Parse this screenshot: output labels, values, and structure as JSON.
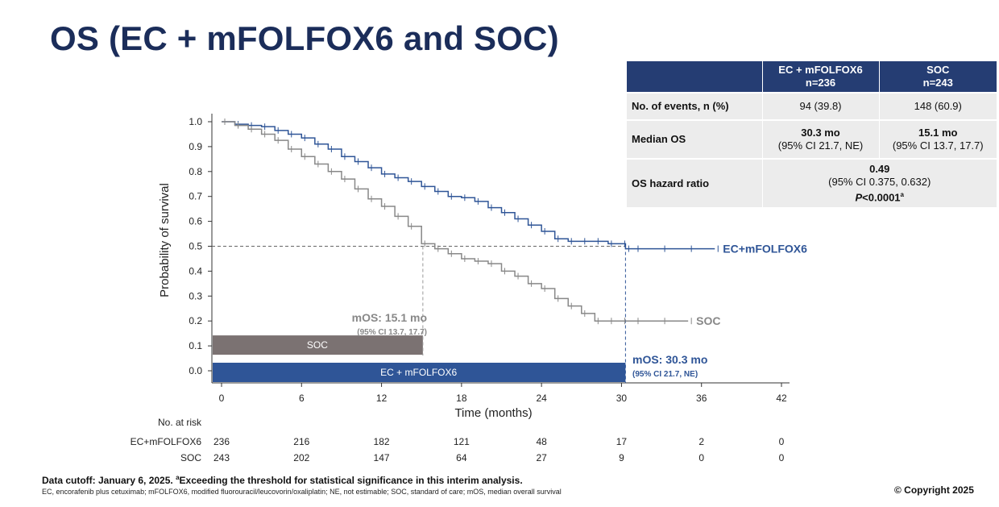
{
  "title": "OS (EC + mFOLFOX6 and SOC)",
  "table": {
    "headers": [
      {
        "line1": "",
        "line2": ""
      },
      {
        "line1": "EC + mFOLFOX6",
        "line2": "n=236"
      },
      {
        "line1": "SOC",
        "line2": "n=243"
      }
    ],
    "events": {
      "label": "No. of events, n (%)",
      "ec": "94 (39.8)",
      "soc": "148 (60.9)"
    },
    "median_os": {
      "label": "Median OS",
      "ec_main": "30.3 mo",
      "ec_ci": "(95% CI 21.7, NE)",
      "soc_main": "15.1 mo",
      "soc_ci": "(95% CI 13.7, 17.7)"
    },
    "hazard_ratio": {
      "label": "OS hazard ratio",
      "value": "0.49",
      "ci": "(95% CI 0.375, 0.632)",
      "p_italic": "P",
      "p_rest": "<0.0001",
      "p_sup": "a"
    }
  },
  "chart_data": {
    "type": "line",
    "xlabel": "Time (months)",
    "ylabel": "Probability of survival",
    "xlim": [
      0,
      42
    ],
    "ylim": [
      0,
      1
    ],
    "xticks": [
      0,
      6,
      12,
      18,
      24,
      30,
      36,
      42
    ],
    "yticks": [
      0.0,
      0.1,
      0.2,
      0.3,
      0.4,
      0.5,
      0.6,
      0.7,
      0.8,
      0.9,
      1.0
    ],
    "ytick_labels": [
      "0.0",
      "0.1",
      "0.2",
      "0.3",
      "0.4",
      "0.5",
      "0.6",
      "0.7",
      "0.8",
      "0.9",
      "1.0"
    ],
    "series": [
      {
        "name": "EC+mFOLFOX6",
        "color": "#2f5597",
        "x": [
          0,
          1,
          2,
          3,
          4,
          5,
          6,
          7,
          8,
          9,
          10,
          11,
          12,
          13,
          14,
          15,
          16,
          17,
          18,
          19,
          20,
          21,
          22,
          23,
          24,
          25,
          26,
          27,
          28,
          29,
          30,
          30.3,
          31,
          33,
          35,
          37
        ],
        "y": [
          1.0,
          0.99,
          0.985,
          0.98,
          0.965,
          0.95,
          0.935,
          0.91,
          0.89,
          0.86,
          0.84,
          0.815,
          0.79,
          0.775,
          0.76,
          0.74,
          0.72,
          0.7,
          0.695,
          0.68,
          0.655,
          0.635,
          0.61,
          0.585,
          0.56,
          0.53,
          0.52,
          0.52,
          0.52,
          0.51,
          0.51,
          0.49,
          0.49,
          0.49,
          0.49,
          0.49
        ]
      },
      {
        "name": "SOC",
        "color": "#888888",
        "x": [
          0,
          1,
          2,
          3,
          4,
          5,
          6,
          7,
          8,
          9,
          10,
          11,
          12,
          13,
          14,
          15,
          16,
          17,
          18,
          19,
          20,
          21,
          22,
          23,
          24,
          25,
          26,
          27,
          28,
          29,
          30,
          31,
          33,
          35
        ],
        "y": [
          1.0,
          0.985,
          0.97,
          0.95,
          0.925,
          0.89,
          0.86,
          0.83,
          0.8,
          0.77,
          0.73,
          0.69,
          0.66,
          0.62,
          0.58,
          0.51,
          0.49,
          0.47,
          0.45,
          0.44,
          0.43,
          0.4,
          0.38,
          0.35,
          0.33,
          0.29,
          0.26,
          0.23,
          0.2,
          0.2,
          0.2,
          0.2,
          0.2,
          0.2
        ]
      }
    ],
    "reference_line_y": 0.5,
    "annotations": {
      "soc_mos": {
        "x": 15.1,
        "label": "mOS: 15.1 mo",
        "ci": "(95% CI 13.7, 17.7)"
      },
      "ec_mos": {
        "x": 30.3,
        "label": "mOS: 30.3 mo",
        "ci": "(95% CI 21.7, NE)"
      }
    },
    "bars": [
      {
        "name": "SOC",
        "value": 15.1,
        "y": 0.1,
        "color": "#7b7272"
      },
      {
        "name": "EC + mFOLFOX6",
        "value": 30.3,
        "y": 0.0,
        "color": "#2f5597"
      }
    ],
    "risk_table": {
      "header": "No. at risk",
      "rows": [
        {
          "label": "EC+mFOLFOX6",
          "values": [
            "236",
            "216",
            "182",
            "121",
            "48",
            "17",
            "2",
            "0"
          ]
        },
        {
          "label": "SOC",
          "values": [
            "243",
            "202",
            "147",
            "64",
            "27",
            "9",
            "0",
            "0"
          ]
        }
      ]
    }
  },
  "footer": {
    "line1_main": "Data cutoff: January 6, 2025.",
    "line1_sup": "a",
    "line1_rest": "Exceeding the threshold for statistical significance in this interim analysis.",
    "line2": "EC, encorafenib plus cetuximab; mFOLFOX6, modified fluorouracil/leucovorin/oxaliplatin; NE, not estimable; SOC, standard of care; mOS, median overall survival",
    "copyright": "© Copyright 2025"
  }
}
